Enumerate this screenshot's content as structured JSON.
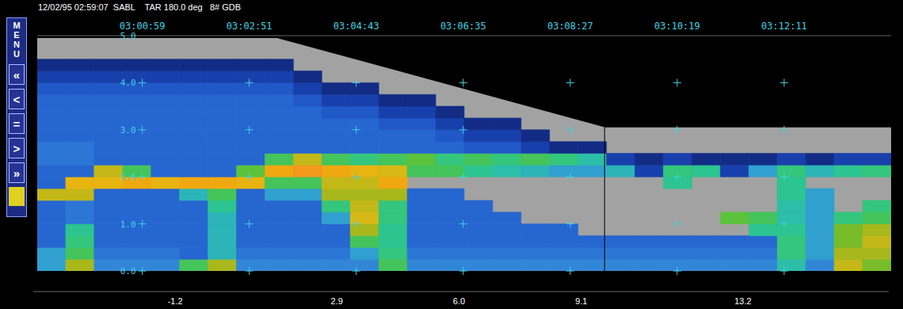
{
  "header": "12/02/95 02:59:07  SABL    TAR 180.0 deg   8# GDB",
  "menu": {
    "title": "MENU",
    "buttons": [
      "«",
      "<",
      "=",
      ">",
      "»"
    ]
  },
  "chart_data": {
    "type": "heatmap",
    "xlim": [
      10749,
      11643
    ],
    "xticks": [
      {
        "value": 10859,
        "label": "03:00:59"
      },
      {
        "value": 10971,
        "label": "03:02:51"
      },
      {
        "value": 11083,
        "label": "03:04:43"
      },
      {
        "value": 11195,
        "label": "03:06:35"
      },
      {
        "value": 11307,
        "label": "03:08:27"
      },
      {
        "value": 11419,
        "label": "03:10:19"
      },
      {
        "value": 11531,
        "label": "03:12:11"
      }
    ],
    "ylim": [
      0,
      5
    ],
    "yticks": [
      {
        "value": 0,
        "label": "0.0"
      },
      {
        "value": 1,
        "label": "1.0"
      },
      {
        "value": 2,
        "label": "2.0"
      },
      {
        "value": 3,
        "label": "3.0"
      },
      {
        "value": 4,
        "label": "4.0"
      },
      {
        "value": 5,
        "label": "5.0"
      }
    ],
    "grid": true,
    "x_edges": [
      10749,
      10778.8,
      10808.6,
      10838.4,
      10868.2,
      10898,
      10927.8,
      10957.6,
      10987.4,
      11017.2,
      11047,
      11076.8,
      11106.6,
      11136.4,
      11166.2,
      11196,
      11225.8,
      11255.6,
      11285.4,
      11315.2,
      11345,
      11374.8,
      11404.6,
      11434.4,
      11464.2,
      11494,
      11523.8,
      11553.6,
      11583.4,
      11613.2,
      11643
    ],
    "y_edges": [
      0,
      0.25,
      0.5,
      0.75,
      1,
      1.25,
      1.5,
      1.75,
      2,
      2.25,
      2.5,
      2.75,
      3,
      3.25,
      3.5,
      3.75,
      4,
      4.25,
      4.5,
      4.75,
      5
    ],
    "cells": [
      [
        3.1,
        9.0,
        2.3,
        2.3,
        2.3,
        6.8,
        9.0,
        2.3,
        2.3,
        2.3,
        2.3,
        2.3,
        6.8,
        2.3,
        2.3,
        2.3,
        2.3,
        2.3,
        2.3,
        2.3,
        2.3,
        2.3,
        2.3,
        2.3,
        2.3,
        2.3,
        4.6,
        2.3,
        9.8,
        8.3
      ],
      [
        3.1,
        6.8,
        1.6,
        1.6,
        1.6,
        0.8,
        3.8,
        1.6,
        1.6,
        1.6,
        1.6,
        3.1,
        6.05,
        1.6,
        1.6,
        1.6,
        1.6,
        1.6,
        1.6,
        1.6,
        1.6,
        1.6,
        1.6,
        1.6,
        1.6,
        1.6,
        6.05,
        3.1,
        9.0,
        9.0
      ],
      [
        0.8,
        6.05,
        0.8,
        0.8,
        0.8,
        0.8,
        3.8,
        0.8,
        0.8,
        0.8,
        0.8,
        6.8,
        5.3,
        0.8,
        0.8,
        0.8,
        0.8,
        0.8,
        0.8,
        0.8,
        0.8,
        0.8,
        0.8,
        0.8,
        0.8,
        0.8,
        6.05,
        3.1,
        8.3,
        9.8
      ],
      [
        0.8,
        5.3,
        0.8,
        0.8,
        0.8,
        0.8,
        3.8,
        0.8,
        0.8,
        0.8,
        0.8,
        9.0,
        5.3,
        0.8,
        0.8,
        0.8,
        0.8,
        0.8,
        0.8,
        null,
        null,
        null,
        null,
        null,
        null,
        5.3,
        5.3,
        3.1,
        8.3,
        9.0
      ],
      [
        0.8,
        1.6,
        0.8,
        0.8,
        0.8,
        0.8,
        3.8,
        0.8,
        0.8,
        0.8,
        3.1,
        10.5,
        6.05,
        0.8,
        0.8,
        0.8,
        0.8,
        null,
        null,
        null,
        null,
        null,
        null,
        null,
        7.5,
        6.8,
        4.6,
        3.1,
        6.05,
        6.8
      ],
      [
        0.8,
        1.6,
        0.8,
        0.8,
        0.8,
        0.8,
        5.3,
        0.8,
        0.8,
        0.8,
        6.05,
        9.8,
        6.05,
        0.8,
        0.8,
        0.8,
        null,
        null,
        null,
        null,
        null,
        null,
        null,
        null,
        null,
        null,
        4.6,
        3.1,
        null,
        6.05
      ],
      [
        9.8,
        9.8,
        0.8,
        0.8,
        0.8,
        3.8,
        6.8,
        0.8,
        3.1,
        3.1,
        9.0,
        9.0,
        9.0,
        0.8,
        0.8,
        null,
        null,
        null,
        null,
        null,
        null,
        null,
        null,
        null,
        null,
        null,
        5.3,
        3.1,
        null,
        null
      ],
      [
        0.8,
        11.3,
        11.3,
        12.0,
        11.3,
        12.0,
        12.0,
        11.3,
        6.8,
        6.8,
        9.8,
        9.8,
        12.0,
        null,
        null,
        null,
        null,
        null,
        null,
        null,
        null,
        null,
        5.3,
        null,
        null,
        null,
        5.3,
        null,
        null,
        null
      ],
      [
        0.8,
        0.8,
        9.8,
        6.8,
        0.8,
        0.8,
        0.8,
        7.5,
        12.0,
        12.8,
        12.0,
        11.3,
        10.5,
        6.8,
        6.8,
        5.3,
        4.6,
        3.8,
        3.1,
        3.1,
        3.8,
        -1.4,
        6.05,
        5.3,
        -1.4,
        3.1,
        6.05,
        3.8,
        5.3,
        6.05
      ],
      [
        1.6,
        1.6,
        0.8,
        0.8,
        0.8,
        0.8,
        0.8,
        0.8,
        6.8,
        9.8,
        6.8,
        6.05,
        6.8,
        7.5,
        6.05,
        6.8,
        6.05,
        6.8,
        6.05,
        4.6,
        -1.4,
        -2.9,
        -1.4,
        -2.9,
        -2.9,
        -2.9,
        -1.4,
        -2.9,
        -1.4,
        -1.4
      ],
      [
        1.6,
        1.6,
        0.8,
        0.8,
        0.8,
        0.8,
        0.8,
        0.8,
        0.8,
        0.8,
        0.8,
        0.8,
        0.8,
        0.8,
        0.8,
        0.1,
        0.1,
        -1.4,
        -2.9,
        -2.9,
        null,
        null,
        null,
        null,
        null,
        null,
        null,
        null,
        null,
        null
      ],
      [
        0.8,
        0.8,
        0.8,
        0.8,
        0.8,
        0.8,
        0.8,
        0.8,
        0.8,
        0.8,
        0.8,
        0.8,
        0.8,
        0.8,
        0.1,
        -1.4,
        -1.4,
        -2.9,
        null,
        null,
        null,
        null,
        null,
        null,
        null,
        null,
        null,
        null,
        null,
        null
      ],
      [
        0.8,
        0.8,
        0.8,
        0.8,
        0.8,
        0.8,
        0.8,
        0.8,
        0.8,
        0.8,
        0.8,
        0.8,
        0.1,
        0.1,
        -1.4,
        -2.9,
        -2.9,
        null,
        null,
        null,
        null,
        null,
        null,
        null,
        null,
        null,
        null,
        null,
        null,
        null
      ],
      [
        0.8,
        0.8,
        0.8,
        0.8,
        0.8,
        0.8,
        0.8,
        0.8,
        0.8,
        0.8,
        0.1,
        0.1,
        -1.4,
        -1.4,
        -2.9,
        null,
        null,
        null,
        null,
        null,
        null,
        null,
        null,
        null,
        null,
        null,
        null,
        null,
        null,
        null
      ],
      [
        0.8,
        0.8,
        0.8,
        0.8,
        0.8,
        0.8,
        0.8,
        0.8,
        0.8,
        0.1,
        -1.4,
        -1.4,
        -2.9,
        -2.9,
        null,
        null,
        null,
        null,
        null,
        null,
        null,
        null,
        null,
        null,
        null,
        null,
        null,
        null,
        null,
        null
      ],
      [
        0.1,
        0.1,
        0.1,
        0.1,
        0.1,
        0.1,
        0.1,
        0.1,
        0.1,
        -1.4,
        -2.9,
        -2.9,
        null,
        null,
        null,
        null,
        null,
        null,
        null,
        null,
        null,
        null,
        null,
        null,
        null,
        null,
        null,
        null,
        null,
        null
      ],
      [
        -1.4,
        -1.4,
        -1.4,
        -1.4,
        -1.4,
        -1.4,
        -1.4,
        -1.4,
        -1.4,
        -2.9,
        null,
        null,
        null,
        null,
        null,
        null,
        null,
        null,
        null,
        null,
        null,
        null,
        null,
        null,
        null,
        null,
        null,
        null,
        null,
        null
      ],
      [
        -2.9,
        -2.9,
        -2.9,
        -2.9,
        -2.9,
        -2.9,
        -2.9,
        -2.9,
        -2.9,
        null,
        null,
        null,
        null,
        null,
        null,
        null,
        null,
        null,
        null,
        null,
        null,
        null,
        null,
        null,
        null,
        null,
        null,
        null,
        null,
        null
      ],
      [
        null,
        null,
        null,
        null,
        null,
        null,
        null,
        null,
        null,
        null,
        null,
        null,
        null,
        null,
        null,
        null,
        null,
        null,
        null,
        null,
        null,
        null,
        null,
        null,
        null,
        null,
        null,
        null,
        null,
        null
      ],
      [
        null,
        null,
        null,
        null,
        null,
        null,
        null,
        null,
        null,
        null,
        null,
        null,
        null,
        null,
        null,
        null,
        null,
        null,
        null,
        null,
        null,
        null,
        null,
        null,
        null,
        null,
        null,
        null,
        null,
        null
      ]
    ],
    "no_signal": {
      "x": [
        10749,
        11000,
        11344,
        11643
      ],
      "top": [
        4.95,
        4.95,
        3.05,
        3.05
      ]
    },
    "cursor": 11343,
    "colorbar": {
      "range": [
        -4.8,
        16.9
      ],
      "ticks": [
        -1.2,
        2.9,
        {
          "value": 6,
          "label": "6.0"
        },
        9.1,
        13.2
      ],
      "colors": [
        "#0c1a5a",
        "#0f2370",
        "#122c86",
        "#15369a",
        "#1840ac",
        "#1c4cbc",
        "#2058c8",
        "#2666d0",
        "#2c76d6",
        "#3286d8",
        "#30a0d0",
        "#2cb4b8",
        "#2cbea8",
        "#2cc490",
        "#34c67c",
        "#44c45a",
        "#5cc23c",
        "#78bc2a",
        "#a8b81c",
        "#c4b818",
        "#d8b814",
        "#e8b410",
        "#f0a810",
        "#f4981c",
        "#f48424",
        "#f06c28",
        "#ec502c",
        "#e0302c",
        "#c81c24"
      ]
    }
  }
}
